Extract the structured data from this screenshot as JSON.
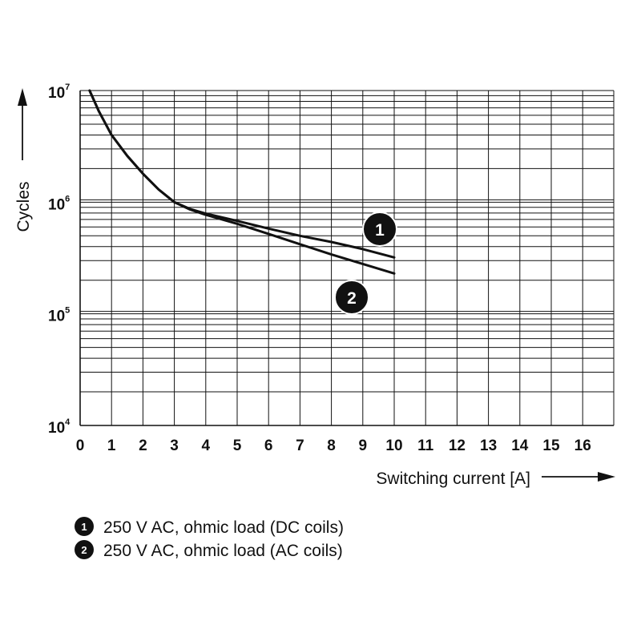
{
  "chart_data": {
    "type": "line",
    "xlabel": "Switching current [A]",
    "ylabel": "Cycles",
    "xlim": [
      0,
      17
    ],
    "ylim": [
      10000,
      10000000
    ],
    "y_scale": "log",
    "grid": true,
    "x_ticks": [
      "0",
      "1",
      "2",
      "3",
      "4",
      "5",
      "6",
      "7",
      "8",
      "9",
      "10",
      "11",
      "12",
      "13",
      "14",
      "15",
      "16"
    ],
    "y_ticks": [
      {
        "base": "10",
        "exp": "4",
        "value": 10000
      },
      {
        "base": "10",
        "exp": "5",
        "value": 100000
      },
      {
        "base": "10",
        "exp": "6",
        "value": 1000000
      },
      {
        "base": "10",
        "exp": "7",
        "value": 10000000
      }
    ],
    "series": [
      {
        "marker": "1",
        "name": "250 V AC, ohmic load (DC coils)",
        "x": [
          0.3,
          0.6,
          1,
          1.5,
          2,
          2.5,
          3,
          3.5,
          4,
          5,
          6,
          7,
          8,
          9,
          10
        ],
        "y": [
          10000000,
          6500000,
          4000000,
          2600000,
          1800000,
          1300000,
          1000000,
          870000,
          790000,
          680000,
          580000,
          500000,
          440000,
          380000,
          320000
        ]
      },
      {
        "marker": "2",
        "name": "250 V AC, ohmic load (AC coils)",
        "x": [
          0.3,
          0.6,
          1,
          1.5,
          2,
          2.5,
          3,
          3.5,
          4,
          5,
          6,
          7,
          8,
          9,
          10
        ],
        "y": [
          10000000,
          6500000,
          4000000,
          2600000,
          1800000,
          1300000,
          1000000,
          860000,
          770000,
          640000,
          520000,
          420000,
          340000,
          280000,
          230000
        ]
      }
    ],
    "labels": [
      {
        "text": "1",
        "series": 0
      },
      {
        "text": "2",
        "series": 1
      }
    ]
  },
  "legend": {
    "items": [
      {
        "marker": "1",
        "label": "250 V AC, ohmic load (DC coils)"
      },
      {
        "marker": "2",
        "label": "250 V AC, ohmic load (AC coils)"
      }
    ]
  }
}
